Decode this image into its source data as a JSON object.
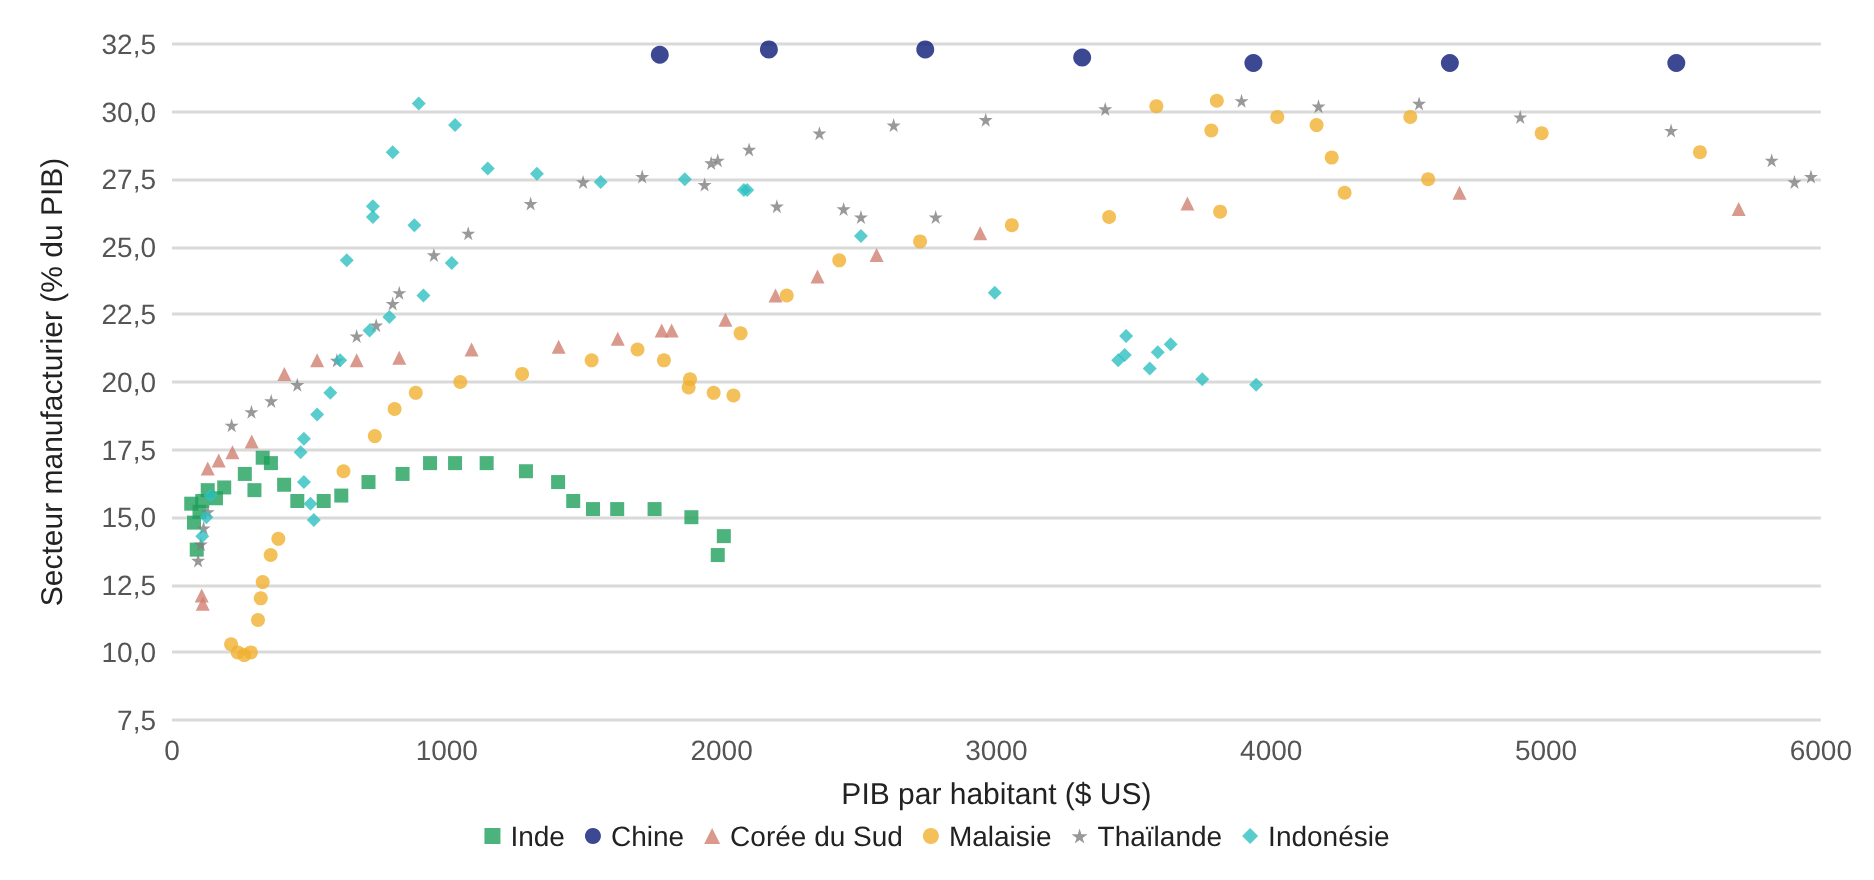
{
  "chart_data": {
    "type": "scatter",
    "xlabel": "PIB par habitant ($ US)",
    "ylabel": "Secteur manufacturier (% du PIB)",
    "xlim": [
      0,
      6000
    ],
    "xticks": [
      0,
      1000,
      2000,
      3000,
      4000,
      5000,
      6000
    ],
    "ylim": [
      7.5,
      32.5
    ],
    "yticks": [
      {
        "value": 7.5,
        "label": "7,5"
      },
      {
        "value": 10,
        "label": "10,0"
      },
      {
        "value": 12.5,
        "label": "12,5"
      },
      {
        "value": 15,
        "label": "15,0"
      },
      {
        "value": 17.5,
        "label": "17,5"
      },
      {
        "value": 20,
        "label": "20,0"
      },
      {
        "value": 22.5,
        "label": "22,5"
      },
      {
        "value": 25,
        "label": "25,0"
      },
      {
        "value": 27.5,
        "label": "27,5"
      },
      {
        "value": 30,
        "label": "30,0"
      },
      {
        "value": 32.5,
        "label": "32,5"
      }
    ],
    "grid": "y",
    "legend": "bottom",
    "series": [
      {
        "name": "Inde",
        "color": "#1ea05a",
        "marker": "square",
        "x": [
          70,
          80,
          90,
          100,
          110,
          130,
          160,
          190,
          265,
          300,
          330,
          360,
          408,
          456,
          552,
          616,
          715,
          839,
          939,
          1030,
          1145,
          1288,
          1405,
          1460,
          1532,
          1620,
          1756,
          1890,
          2008,
          1986
        ],
        "values": [
          15.5,
          14.8,
          13.8,
          15.2,
          15.6,
          16.0,
          15.7,
          16.1,
          16.6,
          16.0,
          17.2,
          17.0,
          16.2,
          15.6,
          15.6,
          15.8,
          16.3,
          16.6,
          17.0,
          17.0,
          17.0,
          16.7,
          16.3,
          15.6,
          15.3,
          15.3,
          15.3,
          15.0,
          14.3,
          13.6
        ]
      },
      {
        "name": "Chine",
        "color": "#0c1a78",
        "marker": "circle",
        "x": [
          1775,
          2172,
          2741,
          3312,
          3935,
          4650,
          5474
        ],
        "values": [
          32.1,
          32.3,
          32.3,
          32.0,
          31.8,
          31.8,
          31.8
        ]
      },
      {
        "name": "Corée du Sud",
        "color": "#d08070",
        "marker": "triangle",
        "x": [
          108,
          112,
          130,
          170,
          220,
          290,
          409,
          528,
          672,
          827,
          1090,
          1407,
          1622,
          1782,
          1818,
          2014,
          2196,
          2349,
          2564,
          2941,
          3695,
          4685,
          5701
        ],
        "values": [
          12.1,
          11.8,
          16.8,
          17.1,
          17.4,
          17.8,
          20.3,
          20.8,
          20.8,
          20.9,
          21.2,
          21.3,
          21.6,
          21.9,
          21.9,
          22.3,
          23.2,
          23.9,
          24.7,
          25.5,
          26.6,
          27.0,
          26.4
        ]
      },
      {
        "name": "Malaisie",
        "color": "#f0b030",
        "marker": "circle",
        "x": [
          215,
          239,
          263,
          287,
          313,
          323,
          330,
          359,
          387,
          624,
          738,
          810,
          887,
          1049,
          1274,
          1527,
          1694,
          1790,
          1885,
          1880,
          1971,
          2043,
          2069,
          2237,
          2428,
          2722,
          3056,
          3410,
          3582,
          3782,
          3802,
          3814,
          4022,
          4165,
          4220,
          4267,
          4506,
          4571,
          4984,
          5560
        ],
        "values": [
          10.3,
          10.0,
          9.9,
          10.0,
          11.2,
          12.0,
          12.6,
          13.6,
          14.2,
          16.7,
          18.0,
          19.0,
          19.6,
          20.0,
          20.3,
          20.8,
          21.2,
          20.8,
          20.1,
          19.8,
          19.6,
          19.5,
          21.8,
          23.2,
          24.5,
          25.2,
          25.8,
          26.1,
          30.2,
          29.3,
          30.4,
          26.3,
          29.8,
          29.5,
          28.3,
          27.0,
          29.8,
          27.5,
          29.2,
          28.5
        ]
      },
      {
        "name": "Thaïlande",
        "color": "#808080",
        "marker": "star",
        "x": [
          95,
          105,
          115,
          130,
          217,
          289,
          361,
          456,
          600,
          672,
          743,
          803,
          827,
          953,
          1078,
          1305,
          1496,
          1711,
          1938,
          1962,
          1986,
          2100,
          2201,
          2356,
          2444,
          2507,
          2626,
          2779,
          2961,
          3396,
          3892,
          4172,
          4538,
          4906,
          5455,
          5821,
          5904,
          5964
        ],
        "values": [
          13.4,
          14.0,
          14.6,
          15.2,
          18.4,
          18.9,
          19.3,
          19.9,
          20.8,
          21.7,
          22.1,
          22.9,
          23.3,
          24.7,
          25.5,
          26.6,
          27.4,
          27.6,
          27.3,
          28.1,
          28.2,
          28.6,
          26.5,
          29.2,
          26.4,
          26.1,
          29.5,
          26.1,
          29.7,
          30.1,
          30.4,
          30.2,
          30.3,
          29.8,
          29.3,
          28.2,
          27.4,
          27.6
        ]
      },
      {
        "name": "Indonésie",
        "color": "#30c0c0",
        "marker": "diamond",
        "x": [
          110,
          125,
          140,
          480,
          504,
          516,
          468,
          480,
          528,
          576,
          612,
          636,
          719,
          731,
          731,
          791,
          803,
          882,
          898,
          915,
          1018,
          1030,
          1149,
          1328,
          1560,
          1866,
          2081,
          2093,
          2507,
          2994,
          3443,
          3467,
          3472,
          3558,
          3587,
          3634,
          3749,
          3945
        ],
        "values": [
          14.3,
          15.0,
          15.8,
          16.3,
          15.5,
          14.9,
          17.4,
          17.9,
          18.8,
          19.6,
          20.8,
          24.5,
          21.9,
          26.5,
          26.1,
          22.4,
          28.5,
          25.8,
          30.3,
          23.2,
          24.4,
          29.5,
          27.9,
          27.7,
          27.4,
          27.5,
          27.1,
          27.1,
          25.4,
          23.3,
          20.8,
          21.0,
          21.7,
          20.5,
          21.1,
          21.4,
          20.1,
          19.9
        ]
      }
    ]
  }
}
